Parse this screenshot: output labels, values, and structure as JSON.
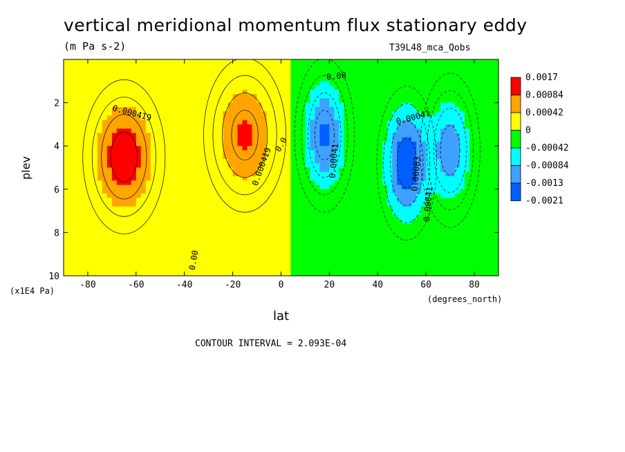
{
  "title": "vertical meridional momentum flux stationary eddy",
  "units": "(m Pa s-2)",
  "run_label": "T39L48_mca_Qobs",
  "contour_interval": "CONTOUR INTERVAL = 2.093E-04",
  "chart_data": {
    "type": "heatmap",
    "xlabel": "lat",
    "x_units": "(degrees_north)",
    "ylabel": "plev",
    "y_units": "(x1E4 Pa)",
    "xlim": [
      -90,
      90
    ],
    "ylim": [
      10,
      0
    ],
    "x_ticks": [
      -80,
      -60,
      -40,
      -20,
      0,
      20,
      40,
      60,
      80
    ],
    "x_tick_labels": [
      "-80",
      "-60",
      "-40",
      "-20",
      "0",
      "20",
      "40",
      "60",
      "80"
    ],
    "y_ticks": [
      2,
      4,
      6,
      8,
      10
    ],
    "y_tick_labels": [
      "2",
      "4",
      "6",
      "8",
      "10"
    ],
    "legend": {
      "placement": "right",
      "labels": [
        "0.0017",
        "0.00084",
        "0.00042",
        "0",
        "-0.00042",
        "-0.00084",
        "-0.0013",
        "-0.0021"
      ],
      "colors": [
        "#ff0000",
        "#ffa500",
        "#ffff00",
        "#00ff00",
        "#00ffff",
        "#40a0ff",
        "#0060ff"
      ]
    },
    "features": [
      {
        "center_lat": -65,
        "center_plev": 4.5,
        "peak": 0.0012,
        "sign": "positive"
      },
      {
        "center_lat": -15,
        "center_plev": 3.5,
        "peak": 0.0009,
        "sign": "positive"
      },
      {
        "center_lat": 18,
        "center_plev": 3.5,
        "peak": -0.0014,
        "sign": "negative"
      },
      {
        "center_lat": 52,
        "center_plev": 4.8,
        "peak": -0.0018,
        "sign": "negative"
      },
      {
        "center_lat": 70,
        "center_plev": 4.2,
        "peak": -0.0011,
        "sign": "negative"
      }
    ],
    "contour_labels": [
      {
        "text": "0.000419",
        "lat": -62,
        "plev": 2.6,
        "angle": 15
      },
      {
        "text": "0.000419",
        "lat": -7,
        "plev": 5.0,
        "angle": -70
      },
      {
        "text": "0.00",
        "lat": 23,
        "plev": 0.9,
        "angle": -5
      },
      {
        "text": "0.0",
        "lat": 1,
        "plev": 4.0,
        "angle": -60
      },
      {
        "text": "0.00041",
        "lat": 23,
        "plev": 4.7,
        "angle": -85
      },
      {
        "text": "0.00041",
        "lat": 55,
        "plev": 2.8,
        "angle": -15
      },
      {
        "text": "0.00083",
        "lat": 57,
        "plev": 5.3,
        "angle": -85
      },
      {
        "text": "0.00041",
        "lat": 62,
        "plev": 6.7,
        "angle": -85
      },
      {
        "text": "0.00",
        "lat": -35,
        "plev": 9.3,
        "angle": -80
      }
    ]
  }
}
